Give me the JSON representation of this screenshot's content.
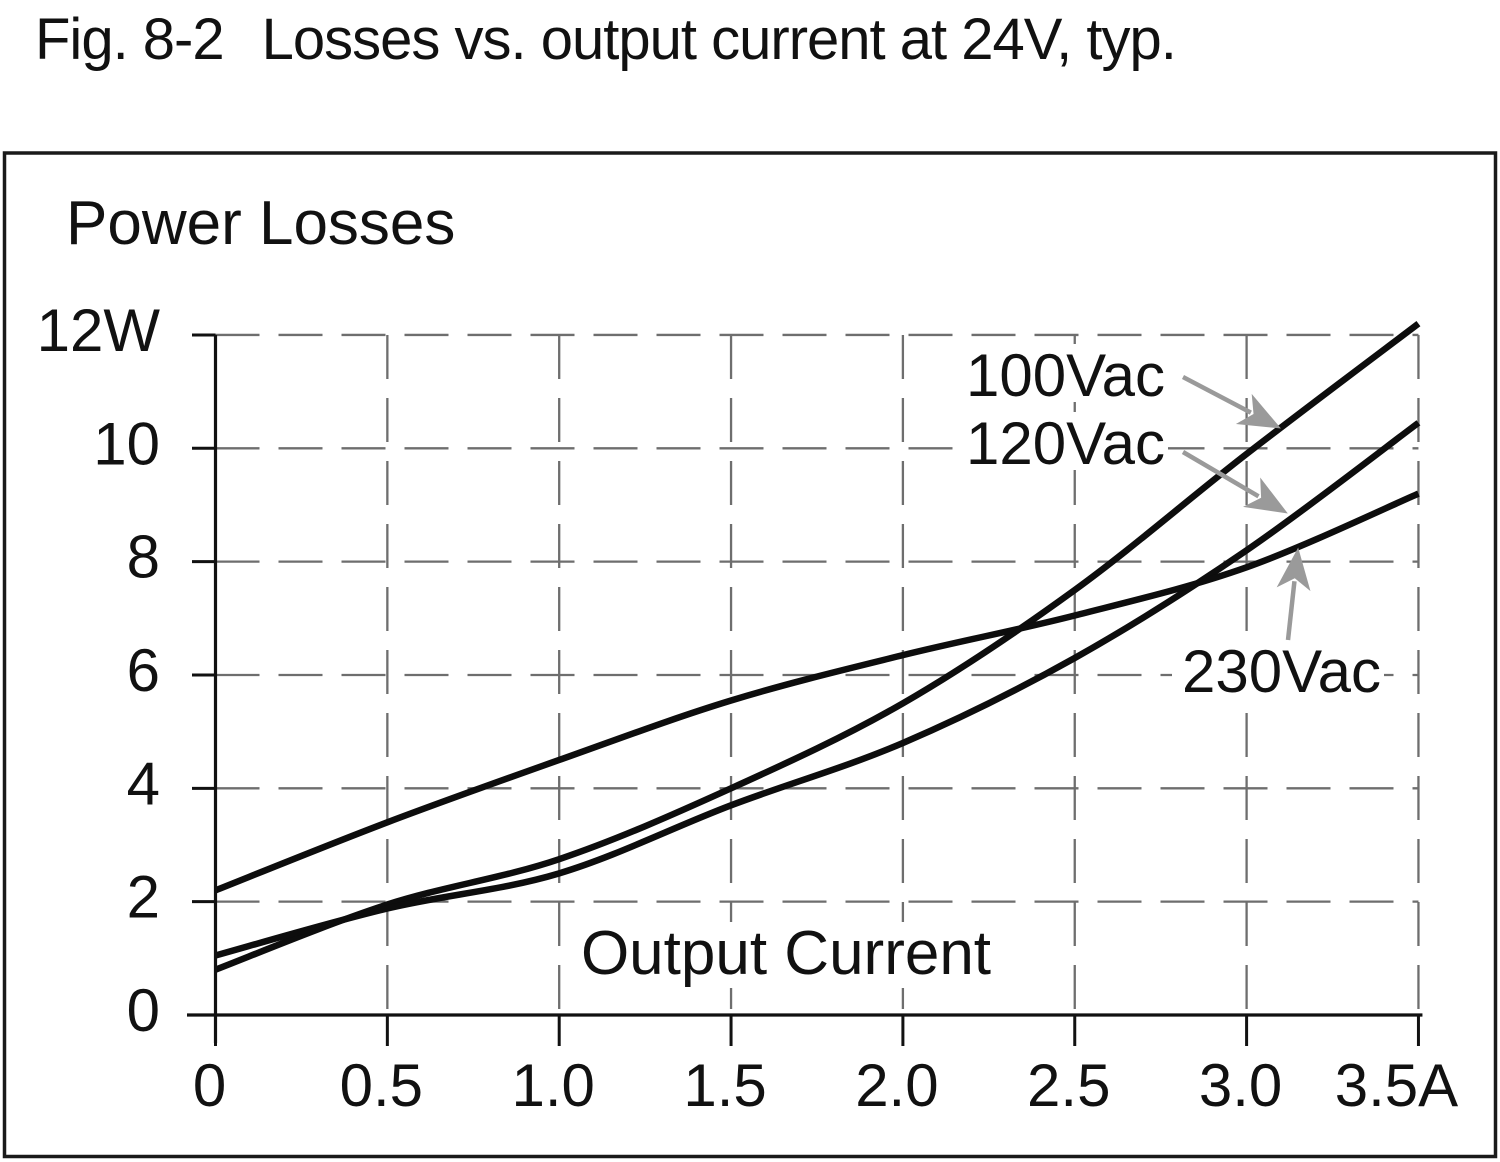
{
  "title": {
    "fig_label": "Fig. 8-2",
    "text": "Losses vs. output current at 24V, typ."
  },
  "chart_data": {
    "type": "line",
    "title": "Losses vs. output current at 24V, typ.",
    "xlabel": "Output Current",
    "ylabel": "Power Losses",
    "x_unit": "A",
    "y_unit": "W",
    "xlim": [
      0,
      3.5
    ],
    "ylim": [
      0,
      12
    ],
    "grid": "dashed",
    "legend_position": "annotated-arrows",
    "x": [
      0,
      0.5,
      1.0,
      1.5,
      2.0,
      2.5,
      3.0,
      3.5
    ],
    "x_tick_labels": [
      "0",
      "0.5",
      "1.0",
      "1.5",
      "2.0",
      "2.5",
      "3.0",
      "3.5A"
    ],
    "y_ticks": [
      0,
      2,
      4,
      6,
      8,
      10,
      12
    ],
    "y_tick_labels": [
      "0",
      "2",
      "4",
      "6",
      "8",
      "10",
      "12W"
    ],
    "series": [
      {
        "name": "100Vac",
        "values": [
          0.8,
          1.95,
          2.75,
          4.0,
          5.5,
          7.5,
          9.9,
          12.2
        ]
      },
      {
        "name": "120Vac",
        "values": [
          1.05,
          1.88,
          2.5,
          3.7,
          4.8,
          6.3,
          8.2,
          10.45
        ]
      },
      {
        "name": "230Vac",
        "values": [
          2.2,
          3.4,
          4.5,
          5.55,
          6.35,
          7.05,
          7.9,
          9.2
        ]
      }
    ],
    "annotations": [
      {
        "label": "100Vac",
        "arrow_to": {
          "x": 3.1,
          "y": 10.35
        }
      },
      {
        "label": "120Vac",
        "arrow_to": {
          "x": 3.12,
          "y": 8.85
        }
      },
      {
        "label": "230Vac",
        "arrow_to": {
          "x": 3.15,
          "y": 8.25
        }
      }
    ],
    "colors": {
      "curve": "#0d0d0d",
      "grid": "#6e6e6e",
      "arrow": "#9a9a9a",
      "axis": "#111111",
      "text": "#111111",
      "background": "#ffffff"
    }
  }
}
